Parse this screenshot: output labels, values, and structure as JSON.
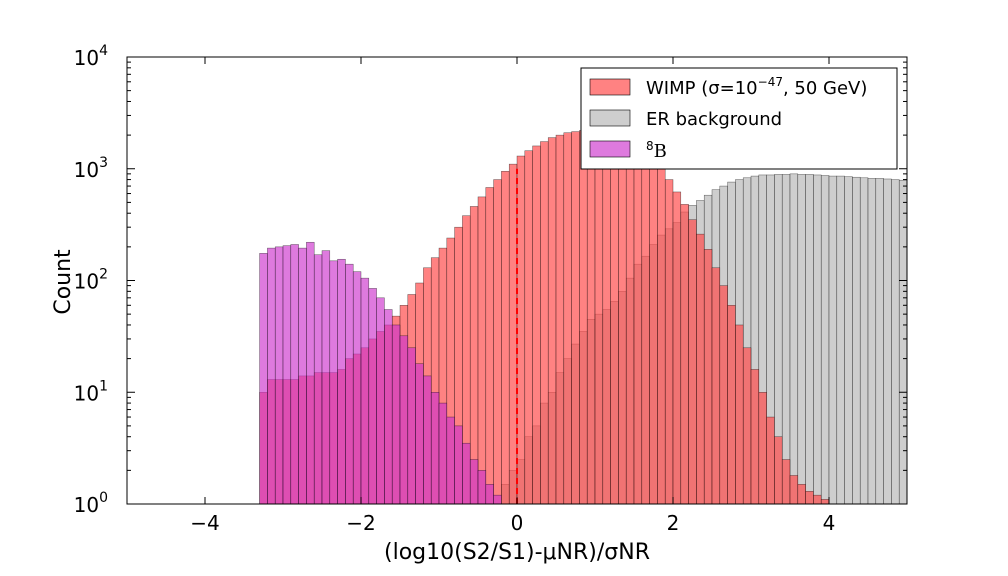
{
  "chart_data": {
    "type": "histogram",
    "xlabel": "(log10(S2/S1)-μNR)/σNR",
    "ylabel": "Count",
    "xlim": [
      -5,
      5
    ],
    "ylim": [
      1,
      10000
    ],
    "yscale": "log",
    "x_ticks": [
      {
        "value": -4,
        "label": "−4"
      },
      {
        "value": -2,
        "label": "−2"
      },
      {
        "value": 0,
        "label": "0"
      },
      {
        "value": 2,
        "label": "2"
      },
      {
        "value": 4,
        "label": "4"
      }
    ],
    "y_ticks": [
      {
        "value": 1,
        "base": "10",
        "exp": "0"
      },
      {
        "value": 10,
        "base": "10",
        "exp": "1"
      },
      {
        "value": 100,
        "base": "10",
        "exp": "2"
      },
      {
        "value": 1000,
        "base": "10",
        "exp": "3"
      },
      {
        "value": 10000,
        "base": "10",
        "exp": "4"
      }
    ],
    "bin_start": -3.3,
    "bin_width": 0.1,
    "legend_position": "top-right",
    "grid": false,
    "vline": {
      "x": 0,
      "y_top": 1000,
      "color": "#ff0000",
      "style": "dashed"
    },
    "series": [
      {
        "name": "ER background",
        "legend_label": "ER background",
        "color": "#bdbdbd",
        "opacity": 0.75,
        "bin_start": -0.2,
        "values": [
          1.5,
          2,
          2.5,
          4,
          5,
          8,
          10,
          15,
          20,
          27,
          35,
          45,
          50,
          55,
          65,
          80,
          105,
          140,
          165,
          210,
          255,
          290,
          330,
          410,
          470,
          520,
          580,
          650,
          700,
          760,
          800,
          830,
          860,
          880,
          880,
          890,
          890,
          900,
          890,
          890,
          880,
          870,
          860,
          860,
          850,
          840,
          830,
          820,
          820,
          810,
          800,
          790,
          780,
          770,
          700
        ]
      },
      {
        "name": "WIMP",
        "legend_label": "WIMP (σ=10",
        "legend_sup": "−47",
        "legend_suffix": ", 50 GeV)",
        "color": "#ff4d4d",
        "opacity": 0.7,
        "bin_start": -3.3,
        "values": [
          10,
          13,
          13,
          13,
          13,
          14,
          14,
          15,
          15,
          15,
          16,
          20,
          22,
          25,
          30,
          35,
          40,
          48,
          60,
          75,
          95,
          130,
          160,
          195,
          240,
          300,
          380,
          460,
          560,
          680,
          800,
          950,
          1100,
          1300,
          1450,
          1600,
          1750,
          1900,
          2000,
          2100,
          2150,
          2200,
          2250,
          2200,
          2150,
          2050,
          1950,
          1800,
          1600,
          1400,
          1200,
          1000,
          800,
          620,
          480,
          350,
          260,
          190,
          130,
          90,
          60,
          40,
          25,
          16,
          10,
          6,
          4,
          2.5,
          1.8,
          1.5,
          1.3,
          1.2,
          1.1,
          1.0,
          1.0,
          1.0,
          1.0,
          1.0,
          1.0,
          1.0,
          1.0,
          1.0,
          1.0,
          1.0,
          1.0
        ]
      },
      {
        "name": "8B",
        "legend_label": "8",
        "legend_suffix": "B",
        "color": "#cc33cc",
        "opacity": 0.65,
        "bin_start": -3.3,
        "values": [
          175,
          195,
          200,
          205,
          210,
          195,
          220,
          170,
          185,
          150,
          155,
          140,
          120,
          105,
          85,
          70,
          55,
          40,
          32,
          25,
          18,
          14,
          10,
          8,
          6,
          5,
          3.5,
          2.5,
          2,
          1.5,
          1.2
        ]
      }
    ]
  }
}
